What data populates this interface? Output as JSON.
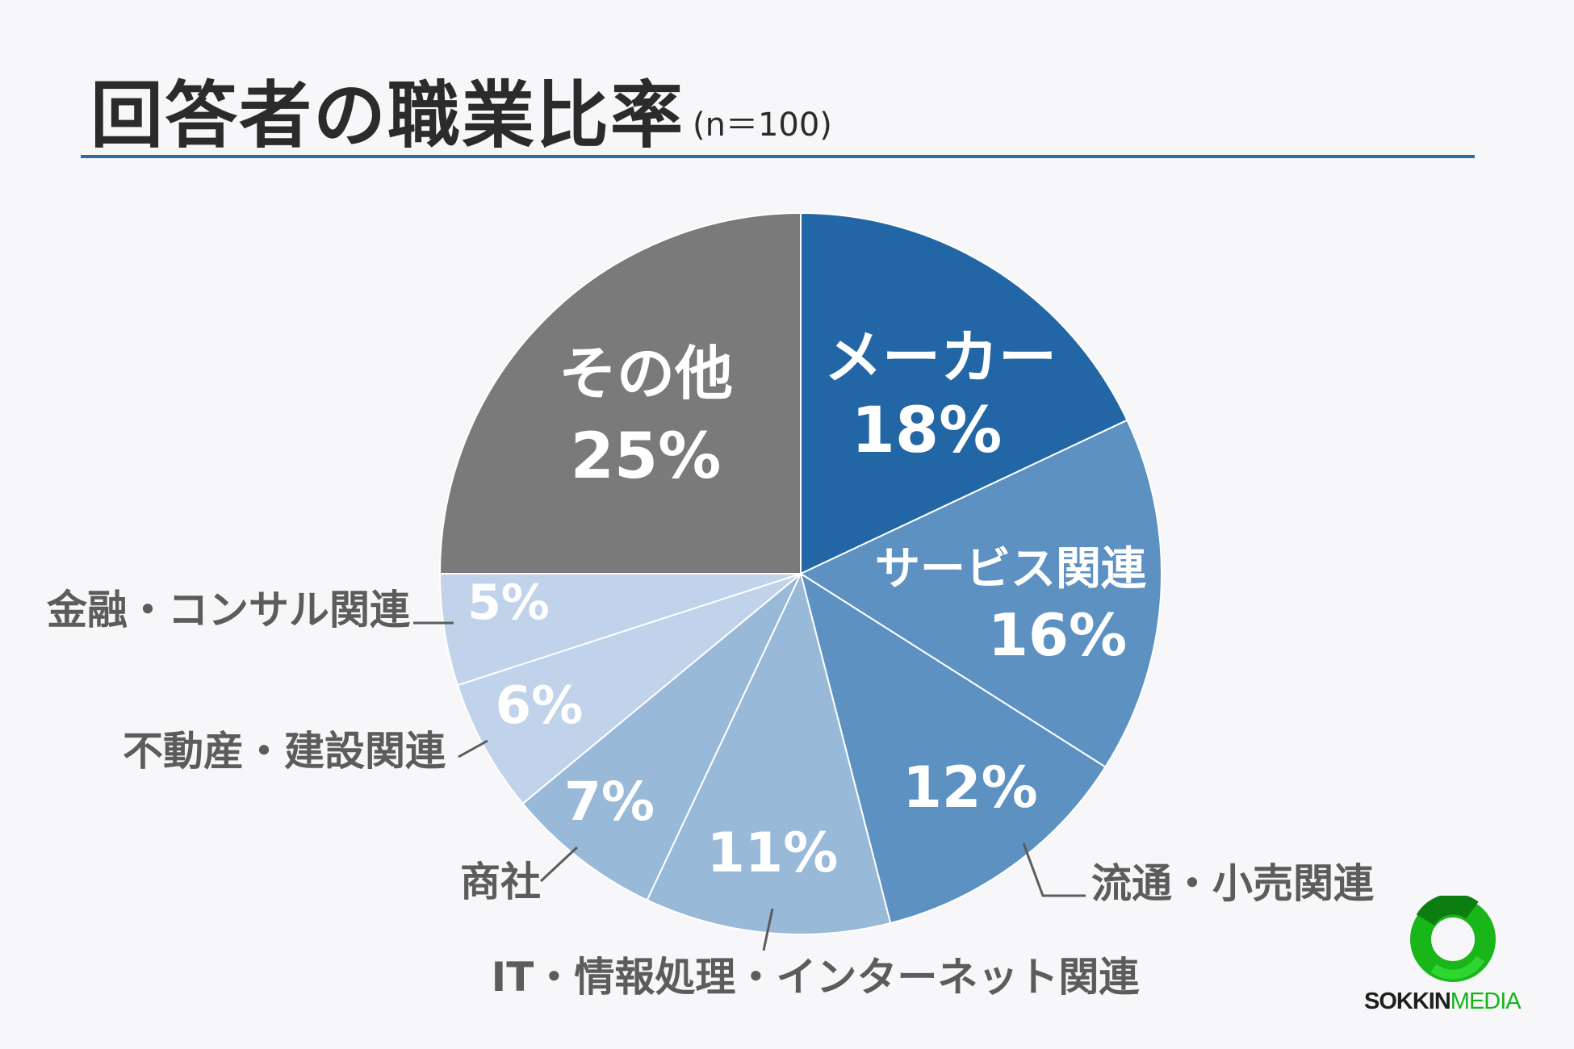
{
  "header": {
    "title": "回答者の職業比率",
    "subtitle": "(n＝100)"
  },
  "chart_data": {
    "type": "pie",
    "title": "回答者の職業比率",
    "subtitle": "(n＝100)",
    "start": "12 o'clock",
    "direction": "clockwise",
    "slices": [
      {
        "label": "メーカー",
        "value": 18,
        "value_label": "18%",
        "color": "#2366a5",
        "text_color": "#ffffff",
        "label_position": "inside"
      },
      {
        "label": "サービス関連",
        "value": 16,
        "value_label": "16%",
        "color": "#5d91c2",
        "text_color": "#ffffff",
        "label_position": "inside"
      },
      {
        "label": "流通・小売関連",
        "value": 12,
        "value_label": "12%",
        "color": "#5d91c2",
        "text_color": "#ffffff",
        "label_position": "outside"
      },
      {
        "label": "IT・情報処理・インターネット関連",
        "value": 11,
        "value_label": "11%",
        "color": "#99b9d9",
        "text_color": "#ffffff",
        "label_position": "outside"
      },
      {
        "label": "商社",
        "value": 7,
        "value_label": "7%",
        "color": "#99b9d9",
        "text_color": "#ffffff",
        "label_position": "outside"
      },
      {
        "label": "不動産・建設関連",
        "value": 6,
        "value_label": "6%",
        "color": "#c0d3ea",
        "text_color": "#ffffff",
        "label_position": "outside"
      },
      {
        "label": "金融・コンサル関連",
        "value": 5,
        "value_label": "5%",
        "color": "#c0d3ea",
        "text_color": "#ffffff",
        "label_position": "outside"
      },
      {
        "label": "その他",
        "value": 25,
        "value_label": "25%",
        "color": "#7a7a7a",
        "text_color": "#ffffff",
        "label_position": "inside"
      }
    ],
    "outside_label_color": "#5c5c5c",
    "rule_color": "#2f6aa3"
  },
  "logo": {
    "brand_left": "SOKKIN",
    "brand_right": "MEDIA",
    "ring_color": "#19b61a"
  }
}
